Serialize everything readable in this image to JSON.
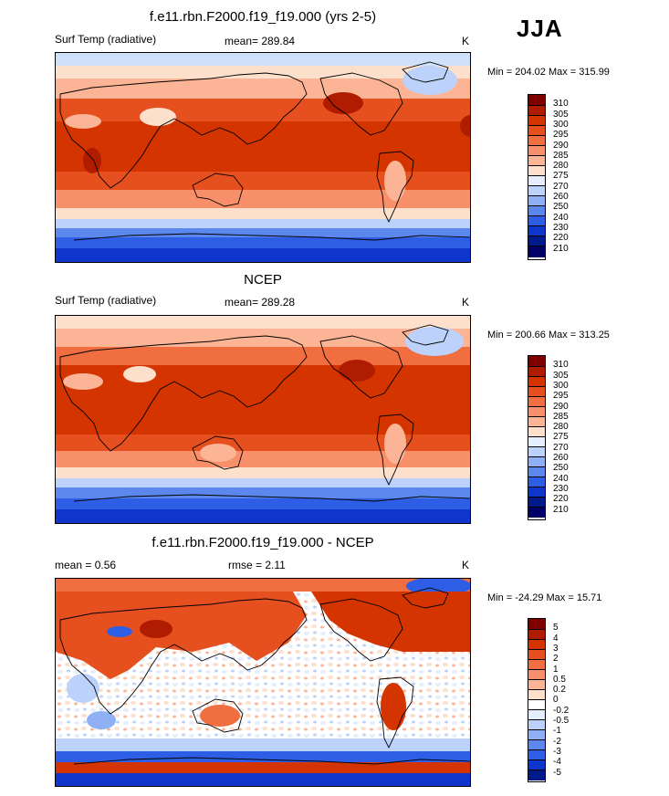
{
  "season": "JJA",
  "panels": [
    {
      "title": "f.e11.rbn.F2000.f19_f19.000 (yrs 2-5)",
      "variable": "Surf Temp (radiative)",
      "stat": "mean= 289.84",
      "units": "K",
      "minmax": "Min = 204.02 Max = 315.99",
      "legend": [
        "310",
        "305",
        "300",
        "295",
        "290",
        "285",
        "280",
        "275",
        "270",
        "260",
        "250",
        "240",
        "230",
        "220",
        "210"
      ]
    },
    {
      "title": "NCEP",
      "variable": "Surf Temp (radiative)",
      "stat": "mean= 289.28",
      "units": "K",
      "minmax": "Min = 200.66 Max = 313.25",
      "legend": [
        "310",
        "305",
        "300",
        "295",
        "290",
        "285",
        "280",
        "275",
        "270",
        "260",
        "250",
        "240",
        "230",
        "220",
        "210"
      ]
    },
    {
      "title": "f.e11.rbn.F2000.f19_f19.000 - NCEP",
      "mean": "mean =   0.56",
      "rmse": "rmse =   2.11",
      "units": "K",
      "minmax": "Min = -24.29 Max =  15.71",
      "legend": [
        "5",
        "4",
        "3",
        "2",
        "1",
        "0.5",
        "0.2",
        "0",
        "-0.2",
        "-0.5",
        "-1",
        "-2",
        "-3",
        "-4",
        "-5"
      ]
    }
  ],
  "colors": {
    "abs_scale": [
      "#800000",
      "#b01c00",
      "#d43500",
      "#e6501e",
      "#f06e40",
      "#f7906a",
      "#fbb596",
      "#fde0cc",
      "#e4eefc",
      "#bcd2fa",
      "#8fb0f5",
      "#5c88ee",
      "#2e5ee6",
      "#0f36cc",
      "#001a8c",
      "#000066"
    ],
    "diff_scale": [
      "#800000",
      "#b01c00",
      "#d43500",
      "#e6501e",
      "#f06e40",
      "#f7906a",
      "#fbb596",
      "#fde0cc",
      "#ffffff",
      "#e4eefc",
      "#bcd2fa",
      "#8fb0f5",
      "#5c88ee",
      "#2e5ee6",
      "#0f36cc",
      "#001a8c"
    ]
  }
}
